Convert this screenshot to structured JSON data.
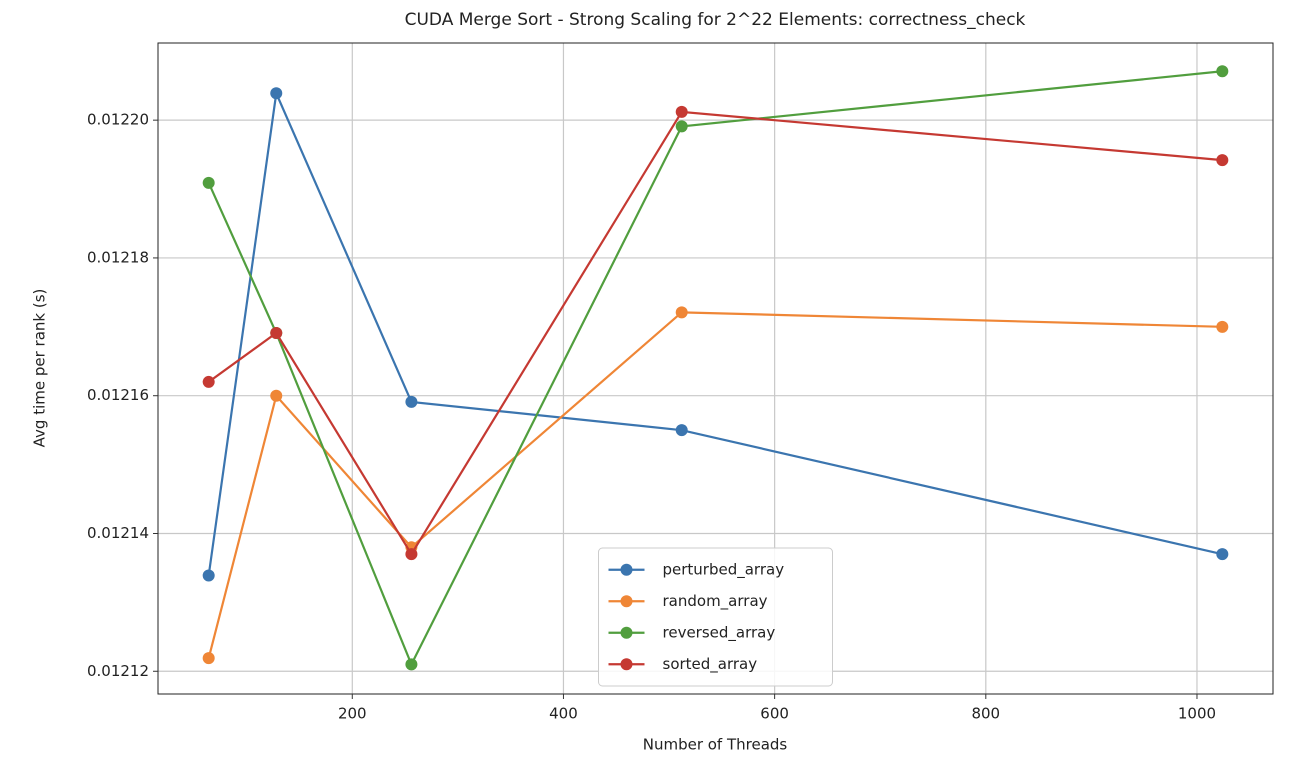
{
  "chart_data": {
    "type": "line",
    "title": "CUDA Merge Sort - Strong Scaling for 2^22 Elements: correctness_check",
    "x_label": "Number of Threads",
    "y_label": "Avg time per rank (s)",
    "x": [
      64,
      128,
      256,
      512,
      1024
    ],
    "series": [
      {
        "name": "perturbed_array",
        "color": "#3b75af",
        "values": [
          0.0121339,
          0.0122039,
          0.0121591,
          0.012155,
          0.012137
        ]
      },
      {
        "name": "random_array",
        "color": "#ef8636",
        "values": [
          0.0121219,
          0.01216,
          0.012138,
          0.0121721,
          0.01217
        ]
      },
      {
        "name": "reversed_array",
        "color": "#519e3e",
        "values": [
          0.0121909,
          0.0121691,
          0.012121,
          0.0121991,
          0.0122071
        ]
      },
      {
        "name": "sorted_array",
        "color": "#c53932",
        "values": [
          0.012162,
          0.0121691,
          0.012137,
          0.0122012,
          0.0121942
        ]
      }
    ],
    "xlim": [
      16,
      1072
    ],
    "xticks": [
      200,
      400,
      600,
      800,
      1000
    ],
    "ylim": [
      0.0121167,
      0.0122112
    ],
    "yticks": [
      0.01212,
      0.01214,
      0.01216,
      0.01218,
      {
        "value": 0.0122,
        "label": "0.01220"
      }
    ],
    "grid": true,
    "legend": "lower center"
  }
}
